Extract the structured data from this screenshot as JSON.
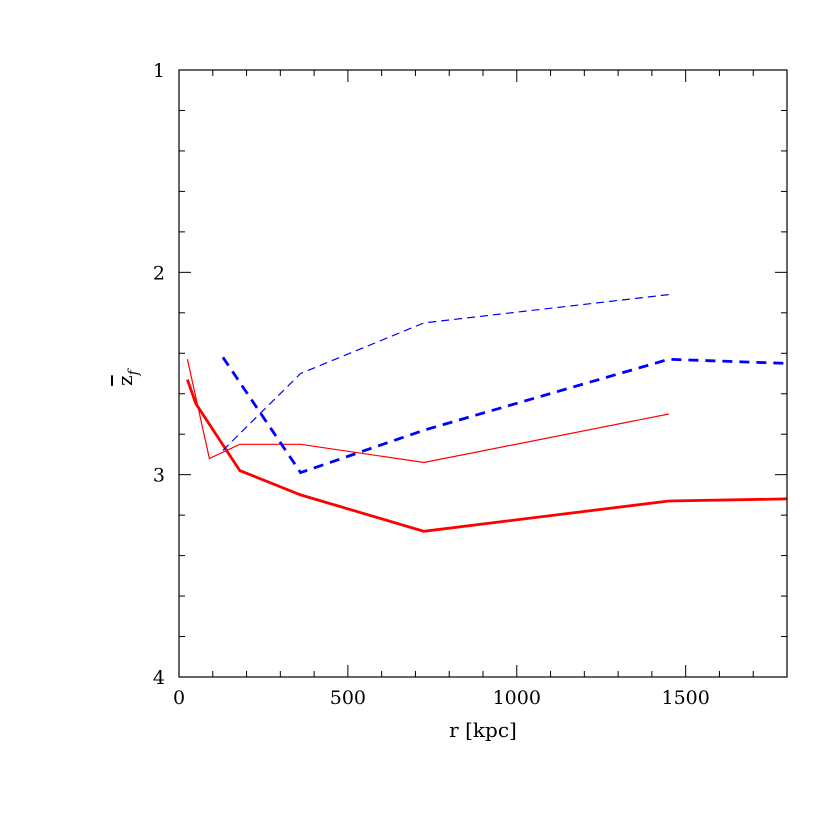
{
  "chart_data": {
    "type": "line",
    "title": "",
    "xlabel": "r [kpc]",
    "ylabel_main": "z",
    "ylabel_sub": "f",
    "xlim": [
      0,
      1800
    ],
    "ylim": [
      1,
      4
    ],
    "y_inverted": true,
    "grid": false,
    "legend": "none",
    "x_ticks": [
      0,
      500,
      1000,
      1500
    ],
    "y_ticks": [
      1,
      2,
      3,
      4
    ],
    "series": [
      {
        "color": "#ff0000",
        "style": "solid-thick",
        "x": [
          25,
          50,
          180,
          360,
          725,
          1450,
          1800
        ],
        "y": [
          2.53,
          2.65,
          2.98,
          3.1,
          3.28,
          3.13,
          3.12
        ]
      },
      {
        "color": "#ff0000",
        "style": "solid-thin",
        "x": [
          25,
          90,
          180,
          360,
          725,
          1450
        ],
        "y": [
          2.43,
          2.92,
          2.85,
          2.85,
          2.94,
          2.7
        ]
      },
      {
        "color": "#0000ff",
        "style": "dashed-thick",
        "x": [
          130,
          360,
          725,
          1450,
          1800
        ],
        "y": [
          2.42,
          2.99,
          2.78,
          2.43,
          2.45
        ]
      },
      {
        "color": "#0000ff",
        "style": "dashed-thin",
        "x": [
          130,
          360,
          725,
          1450
        ],
        "y": [
          2.88,
          2.5,
          2.25,
          2.11
        ]
      }
    ]
  }
}
